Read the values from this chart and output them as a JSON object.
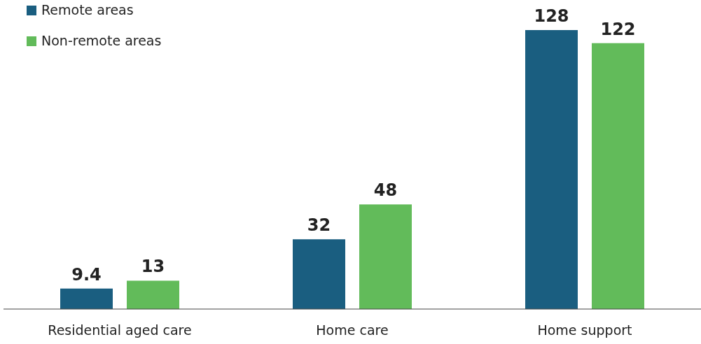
{
  "chart_data": {
    "type": "bar",
    "categories": [
      "Residential aged care",
      "Home care",
      "Home support"
    ],
    "series": [
      {
        "name": "Remote areas",
        "color": "#1a5e80",
        "values": [
          9.4,
          32,
          128
        ]
      },
      {
        "name": "Non-remote areas",
        "color": "#62bb5a",
        "values": [
          13,
          48,
          122
        ]
      }
    ],
    "data_labels": true,
    "legend": "top left"
  }
}
